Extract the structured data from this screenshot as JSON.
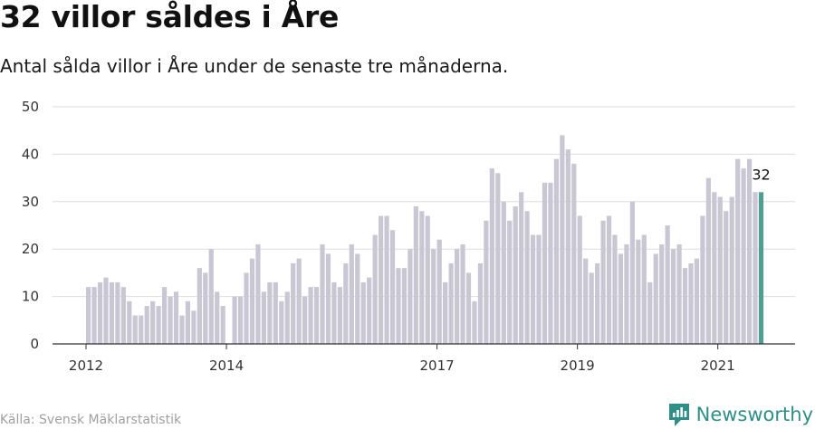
{
  "title": "32 villor såldes i Åre",
  "subtitle": "Antal sålda villor i Åre under de senaste tre månaderna.",
  "source": "Källa: Svensk Mäklarstatistik",
  "brand": "Newsworthy",
  "colors": {
    "bar": "#c8c7d3",
    "highlight": "#4e9e94",
    "brand": "#2f8f88",
    "grid": "#dddddd"
  },
  "chart_data": {
    "type": "bar",
    "title": "32 villor såldes i Åre",
    "subtitle": "Antal sålda villor i Åre under de senaste tre månaderna.",
    "xlabel": "",
    "ylabel": "",
    "ylim": [
      0,
      50
    ],
    "y_ticks": [
      0,
      10,
      20,
      30,
      40,
      50
    ],
    "x_ticks": [
      {
        "label": "2012",
        "index": 0
      },
      {
        "label": "2014",
        "index": 24
      },
      {
        "label": "2017",
        "index": 60
      },
      {
        "label": "2019",
        "index": 84
      },
      {
        "label": "2021",
        "index": 108
      }
    ],
    "grid": true,
    "values": [
      12,
      12,
      13,
      14,
      13,
      13,
      12,
      9,
      6,
      6,
      8,
      9,
      8,
      12,
      10,
      11,
      6,
      9,
      7,
      16,
      15,
      20,
      11,
      8,
      null,
      10,
      10,
      15,
      18,
      21,
      11,
      13,
      13,
      9,
      11,
      17,
      18,
      10,
      12,
      12,
      21,
      19,
      13,
      12,
      17,
      21,
      19,
      13,
      14,
      23,
      27,
      27,
      24,
      16,
      16,
      20,
      29,
      28,
      27,
      20,
      22,
      13,
      17,
      20,
      21,
      15,
      9,
      17,
      26,
      37,
      36,
      30,
      26,
      29,
      32,
      28,
      23,
      23,
      34,
      34,
      39,
      44,
      41,
      38,
      27,
      18,
      15,
      17,
      26,
      27,
      23,
      19,
      21,
      30,
      22,
      23,
      13,
      19,
      21,
      25,
      20,
      21,
      16,
      17,
      18,
      27,
      35,
      32,
      31,
      28,
      31,
      39,
      37,
      39,
      32,
      32
    ],
    "highlight_index": 115,
    "annotations": [
      {
        "index": 115,
        "text": "32"
      }
    ]
  }
}
